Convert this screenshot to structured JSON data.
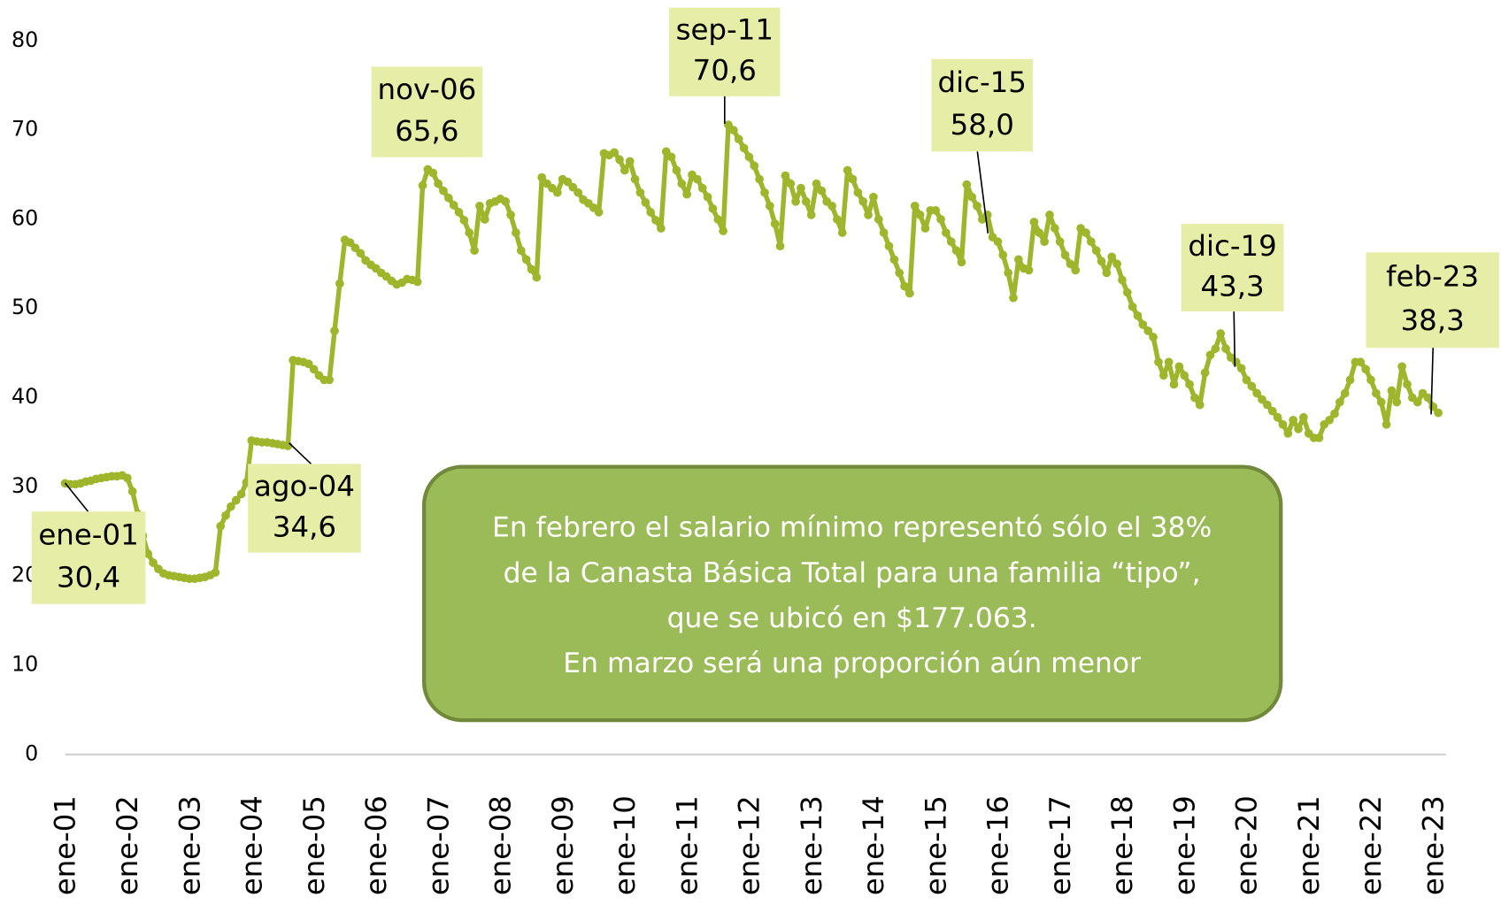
{
  "chart_data": {
    "type": "line",
    "categories": [
      "ene-01",
      null,
      null,
      null,
      null,
      null,
      null,
      null,
      null,
      null,
      null,
      null,
      "ene-02",
      null,
      null,
      null,
      null,
      null,
      null,
      null,
      null,
      null,
      null,
      null,
      "ene-03",
      null,
      null,
      null,
      null,
      null,
      null,
      null,
      null,
      null,
      null,
      null,
      "ene-04",
      null,
      null,
      null,
      null,
      null,
      null,
      null,
      null,
      null,
      null,
      null,
      "ene-05",
      null,
      null,
      null,
      null,
      null,
      null,
      null,
      null,
      null,
      null,
      null,
      "ene-06",
      null,
      null,
      null,
      null,
      null,
      null,
      null,
      null,
      null,
      null,
      null,
      "ene-07",
      null,
      null,
      null,
      null,
      null,
      null,
      null,
      null,
      null,
      null,
      null,
      "ene-08",
      null,
      null,
      null,
      null,
      null,
      null,
      null,
      null,
      null,
      null,
      null,
      "ene-09",
      null,
      null,
      null,
      null,
      null,
      null,
      null,
      null,
      null,
      null,
      null,
      "ene-10",
      null,
      null,
      null,
      null,
      null,
      null,
      null,
      null,
      null,
      null,
      null,
      "ene-11",
      null,
      null,
      null,
      null,
      null,
      null,
      null,
      null,
      null,
      null,
      null,
      "ene-12",
      null,
      null,
      null,
      null,
      null,
      null,
      null,
      null,
      null,
      null,
      null,
      "ene-13",
      null,
      null,
      null,
      null,
      null,
      null,
      null,
      null,
      null,
      null,
      null,
      "ene-14",
      null,
      null,
      null,
      null,
      null,
      null,
      null,
      null,
      null,
      null,
      null,
      "ene-15",
      null,
      null,
      null,
      null,
      null,
      null,
      null,
      null,
      null,
      null,
      null,
      "ene-16",
      null,
      null,
      null,
      null,
      null,
      null,
      null,
      null,
      null,
      null,
      null,
      "ene-17",
      null,
      null,
      null,
      null,
      null,
      null,
      null,
      null,
      null,
      null,
      null,
      "ene-18",
      null,
      null,
      null,
      null,
      null,
      null,
      null,
      null,
      null,
      null,
      null,
      "ene-19",
      null,
      null,
      null,
      null,
      null,
      null,
      null,
      null,
      null,
      null,
      null,
      "ene-20",
      null,
      null,
      null,
      null,
      null,
      null,
      null,
      null,
      null,
      null,
      null,
      "ene-21",
      null,
      null,
      null,
      null,
      null,
      null,
      null,
      null,
      null,
      null,
      null,
      "ene-22",
      null,
      null,
      null,
      null,
      null,
      null,
      null,
      null,
      null,
      null,
      null,
      "ene-23",
      null
    ],
    "series": [
      {
        "color": "#9fb52b",
        "values": [
          30.4,
          30.3,
          30.3,
          30.4,
          30.6,
          30.7,
          30.9,
          31.0,
          31.1,
          31.2,
          31.2,
          31.3,
          31.0,
          29.5,
          27.0,
          24.5,
          22.5,
          21.5,
          20.8,
          20.3,
          20.1,
          20.0,
          19.9,
          19.8,
          19.7,
          19.7,
          19.8,
          19.9,
          20.1,
          20.4,
          25.6,
          26.8,
          27.8,
          28.5,
          29.2,
          30.5,
          35.2,
          35.1,
          35.0,
          35.0,
          34.9,
          34.8,
          34.7,
          34.6,
          44.2,
          44.1,
          44.0,
          43.8,
          43.2,
          42.5,
          42.0,
          42.0,
          47.5,
          52.8,
          57.7,
          57.4,
          56.8,
          56.2,
          55.4,
          54.9,
          54.5,
          54.0,
          53.6,
          53.1,
          52.7,
          52.9,
          53.3,
          53.2,
          53.0,
          63.8,
          65.6,
          65.2,
          64.0,
          63.2,
          62.4,
          61.6,
          60.8,
          59.9,
          58.5,
          56.5,
          61.5,
          60.0,
          61.8,
          62.0,
          62.3,
          62.0,
          60.5,
          58.5,
          56.5,
          55.5,
          54.4,
          53.5,
          64.7,
          64.0,
          63.5,
          63.0,
          64.5,
          64.2,
          63.6,
          63.0,
          62.2,
          61.8,
          61.3,
          60.8,
          67.4,
          67.2,
          67.5,
          66.7,
          65.5,
          66.5,
          64.5,
          63.0,
          61.9,
          60.8,
          59.9,
          59.0,
          67.6,
          67.0,
          65.5,
          64.0,
          62.8,
          65.0,
          64.5,
          63.5,
          62.5,
          61.2,
          60.0,
          58.7,
          70.6,
          70.0,
          69.0,
          68.0,
          67.0,
          66.0,
          64.5,
          63.0,
          61.5,
          59.5,
          57.0,
          64.9,
          64.0,
          62.0,
          63.5,
          62.0,
          60.5,
          64.0,
          63.2,
          62.0,
          61.5,
          60.0,
          58.5,
          65.5,
          64.5,
          63.0,
          62.0,
          60.5,
          62.5,
          60.0,
          58.5,
          57.0,
          55.5,
          54.0,
          52.5,
          51.7,
          61.5,
          60.5,
          59.0,
          61.0,
          61.0,
          60.0,
          58.5,
          57.5,
          56.5,
          55.2,
          63.9,
          62.5,
          61.5,
          60.0,
          60.5,
          58.0,
          57.5,
          56.0,
          54.0,
          51.2,
          55.5,
          54.5,
          54.3,
          59.7,
          58.5,
          57.5,
          60.5,
          59.0,
          57.5,
          56.0,
          55.0,
          54.3,
          59.0,
          58.5,
          57.5,
          56.5,
          55.3,
          54.0,
          55.8,
          55.0,
          53.2,
          51.8,
          50.2,
          49.2,
          48.2,
          47.5,
          46.8,
          44.0,
          42.5,
          44.0,
          41.5,
          43.5,
          42.5,
          41.5,
          40.0,
          39.2,
          42.8,
          44.8,
          45.5,
          47.2,
          45.5,
          44.5,
          44.0,
          43.3,
          42.0,
          41.3,
          40.5,
          39.8,
          39.2,
          38.5,
          37.8,
          37.0,
          36.0,
          37.5,
          36.5,
          37.8,
          36.0,
          35.5,
          35.5,
          37.0,
          37.5,
          38.2,
          39.5,
          40.5,
          42.0,
          44.0,
          44.0,
          43.2,
          42.0,
          40.5,
          39.5,
          37.0,
          40.8,
          39.5,
          43.5,
          41.5,
          40.0,
          39.5,
          40.5,
          40.0,
          39.0,
          38.3
        ]
      }
    ],
    "ylim": [
      0,
      80
    ],
    "yticks": [
      0,
      10,
      20,
      30,
      40,
      50,
      60,
      70,
      80
    ],
    "annotations": [
      {
        "date": "ene-01",
        "value": "30,4"
      },
      {
        "date": "ago-04",
        "value": "34,6"
      },
      {
        "date": "nov-06",
        "value": "65,6"
      },
      {
        "date": "sep-11",
        "value": "70,6"
      },
      {
        "date": "dic-15",
        "value": "58,0"
      },
      {
        "date": "dic-19",
        "value": "43,3"
      },
      {
        "date": "feb-23",
        "value": "38,3"
      }
    ],
    "note": [
      "En febrero el salario mínimo representó sólo el 38%",
      "de la Canasta Básica Total para una familia “tipo”,",
      "que se ubicó en $177.063.",
      "En marzo será una proporción aún menor"
    ]
  }
}
